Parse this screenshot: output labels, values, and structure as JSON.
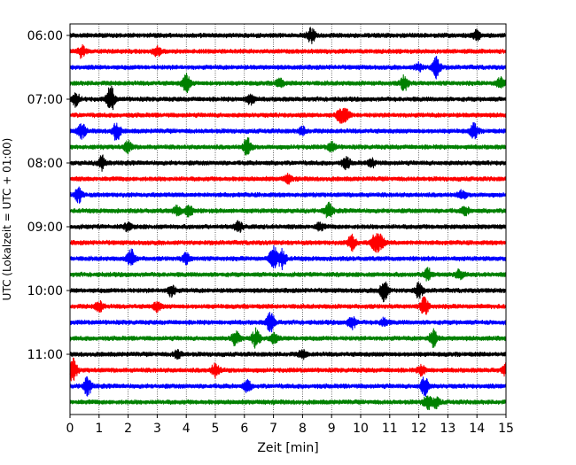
{
  "chart_data": {
    "type": "line",
    "title": "",
    "xlabel": "Zeit  [min]",
    "ylabel": "UTC (Lokalzeit = UTC + 01:00)",
    "xlim": [
      0,
      15
    ],
    "xticks": [
      0,
      1,
      2,
      3,
      4,
      5,
      6,
      7,
      8,
      9,
      10,
      11,
      12,
      13,
      14,
      15
    ],
    "grid_x": true,
    "yticks": [
      "06:00",
      "07:00",
      "08:00",
      "09:00",
      "10:00",
      "11:00"
    ],
    "trace_interval_min": 15,
    "color_cycle": [
      "#000000",
      "#ff0000",
      "#0000ff",
      "#008000"
    ],
    "traces": [
      {
        "start": "06:00",
        "color": "#000000",
        "events": [
          [
            8.3,
            8
          ],
          [
            14.0,
            5
          ]
        ]
      },
      {
        "start": "06:15",
        "color": "#ff0000",
        "events": [
          [
            0.4,
            6
          ],
          [
            3.0,
            5
          ]
        ]
      },
      {
        "start": "06:30",
        "color": "#0000ff",
        "events": [
          [
            12.6,
            12
          ],
          [
            12.0,
            4
          ]
        ]
      },
      {
        "start": "06:45",
        "color": "#008000",
        "events": [
          [
            4.0,
            10
          ],
          [
            7.2,
            5
          ],
          [
            11.5,
            8
          ],
          [
            14.8,
            6
          ]
        ]
      },
      {
        "start": "07:00",
        "color": "#000000",
        "events": [
          [
            0.2,
            7
          ],
          [
            1.4,
            14
          ],
          [
            6.2,
            6
          ]
        ]
      },
      {
        "start": "07:15",
        "color": "#ff0000",
        "events": [
          [
            9.3,
            7
          ],
          [
            9.5,
            6
          ]
        ]
      },
      {
        "start": "07:30",
        "color": "#0000ff",
        "events": [
          [
            0.4,
            8
          ],
          [
            1.6,
            10
          ],
          [
            13.9,
            8
          ],
          [
            8.0,
            4
          ]
        ]
      },
      {
        "start": "07:45",
        "color": "#008000",
        "events": [
          [
            2.0,
            6
          ],
          [
            6.1,
            9
          ],
          [
            9.0,
            5
          ]
        ]
      },
      {
        "start": "08:00",
        "color": "#000000",
        "events": [
          [
            1.1,
            7
          ],
          [
            9.5,
            6
          ],
          [
            10.4,
            4
          ]
        ]
      },
      {
        "start": "08:15",
        "color": "#ff0000",
        "events": [
          [
            7.5,
            4
          ]
        ]
      },
      {
        "start": "08:30",
        "color": "#0000ff",
        "events": [
          [
            0.3,
            8
          ],
          [
            13.5,
            4
          ]
        ]
      },
      {
        "start": "08:45",
        "color": "#008000",
        "events": [
          [
            3.7,
            5
          ],
          [
            4.1,
            6
          ],
          [
            8.9,
            8
          ],
          [
            13.6,
            4
          ]
        ]
      },
      {
        "start": "09:00",
        "color": "#000000",
        "events": [
          [
            2.0,
            4
          ],
          [
            5.8,
            6
          ],
          [
            8.6,
            4
          ]
        ]
      },
      {
        "start": "09:15",
        "color": "#ff0000",
        "events": [
          [
            9.7,
            9
          ],
          [
            10.5,
            10
          ],
          [
            10.7,
            7
          ]
        ]
      },
      {
        "start": "09:30",
        "color": "#0000ff",
        "events": [
          [
            2.1,
            10
          ],
          [
            7.0,
            13
          ],
          [
            7.3,
            10
          ],
          [
            4.0,
            6
          ]
        ]
      },
      {
        "start": "09:45",
        "color": "#008000",
        "events": [
          [
            12.3,
            7
          ],
          [
            13.4,
            5
          ]
        ]
      },
      {
        "start": "10:00",
        "color": "#000000",
        "events": [
          [
            3.5,
            6
          ],
          [
            10.8,
            12
          ],
          [
            12.0,
            8
          ]
        ]
      },
      {
        "start": "10:15",
        "color": "#ff0000",
        "events": [
          [
            1.0,
            6
          ],
          [
            12.2,
            10
          ],
          [
            3.0,
            5
          ]
        ]
      },
      {
        "start": "10:30",
        "color": "#0000ff",
        "events": [
          [
            6.9,
            11
          ],
          [
            9.7,
            7
          ],
          [
            10.8,
            4
          ]
        ]
      },
      {
        "start": "10:45",
        "color": "#008000",
        "events": [
          [
            5.7,
            8
          ],
          [
            6.4,
            10
          ],
          [
            7.0,
            5
          ],
          [
            12.5,
            9
          ]
        ]
      },
      {
        "start": "11:00",
        "color": "#000000",
        "events": [
          [
            3.7,
            4
          ],
          [
            8.0,
            4
          ]
        ]
      },
      {
        "start": "11:15",
        "color": "#ff0000",
        "events": [
          [
            0.1,
            13
          ],
          [
            5.0,
            7
          ],
          [
            12.1,
            5
          ],
          [
            15.0,
            6
          ]
        ]
      },
      {
        "start": "11:30",
        "color": "#0000ff",
        "events": [
          [
            0.6,
            10
          ],
          [
            6.1,
            6
          ],
          [
            12.2,
            10
          ]
        ]
      },
      {
        "start": "11:45",
        "color": "#008000",
        "events": [
          [
            12.3,
            8
          ],
          [
            12.6,
            5
          ]
        ]
      }
    ]
  }
}
